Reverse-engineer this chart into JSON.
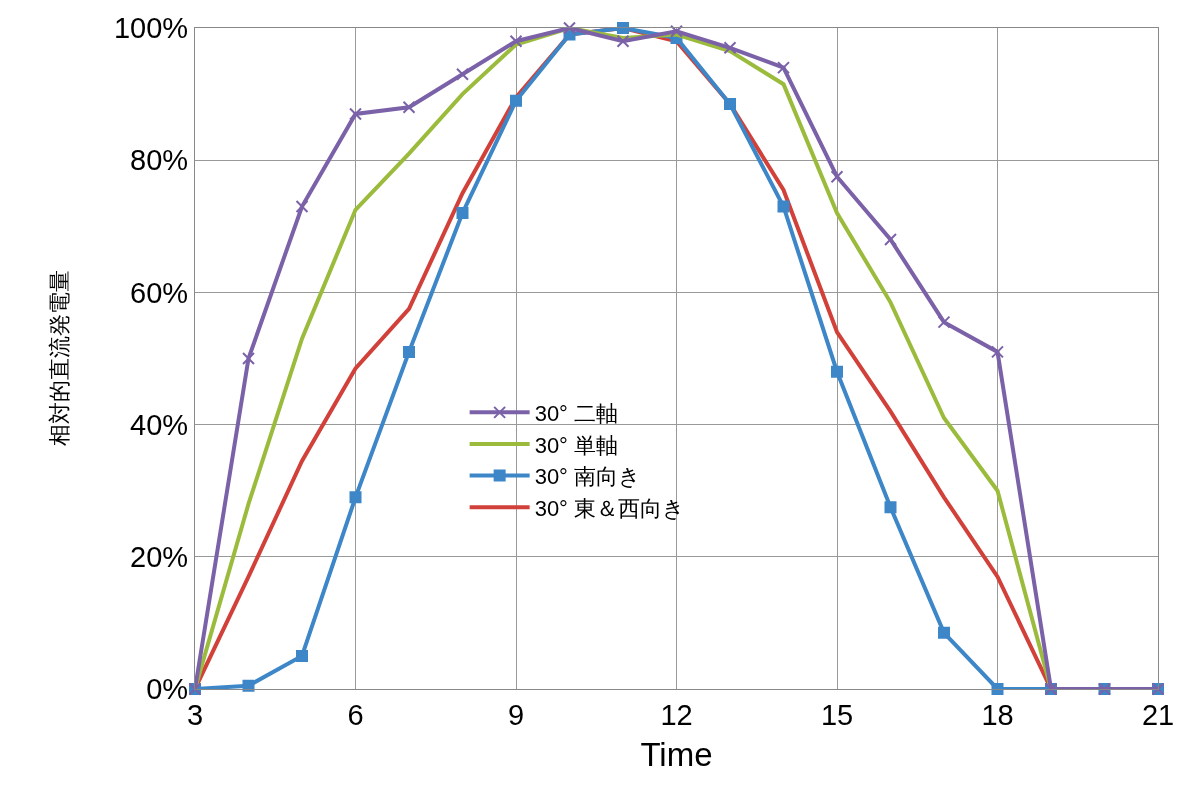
{
  "chart_data": {
    "type": "line",
    "xlabel": "Time",
    "ylabel": "相対的直流発電量",
    "x": [
      3,
      4,
      5,
      6,
      7,
      8,
      9,
      10,
      11,
      12,
      13,
      14,
      15,
      16,
      17,
      18,
      19,
      20,
      21
    ],
    "series": [
      {
        "name": "30° 二軸",
        "color": "#7b62a8",
        "marker": "cross",
        "values": [
          0,
          50,
          73,
          87,
          88,
          93,
          98,
          100,
          98,
          99.5,
          97,
          94,
          77.5,
          68,
          55.5,
          51,
          0,
          0,
          0
        ]
      },
      {
        "name": "30° 単軸",
        "color": "#9bbb3c",
        "marker": "none",
        "values": [
          0,
          28,
          53,
          72.5,
          81,
          90,
          97.5,
          100,
          98.5,
          99,
          96.5,
          91.5,
          72,
          58.5,
          41,
          30,
          0,
          0,
          0
        ]
      },
      {
        "name": "30° 南向き",
        "color": "#3d86c8",
        "marker": "square",
        "values": [
          0,
          0.5,
          5,
          29,
          51,
          72,
          89,
          99,
          100,
          98.5,
          88.5,
          73,
          48,
          27.5,
          8.5,
          0,
          0,
          0,
          0
        ]
      },
      {
        "name": "30° 東＆西向き",
        "color": "#d2403a",
        "marker": "none",
        "values": [
          0,
          17,
          34.5,
          48.5,
          57.5,
          75,
          89.5,
          99,
          100,
          98,
          88.5,
          75.5,
          54,
          42,
          29,
          17,
          0,
          0,
          0
        ]
      }
    ],
    "xlim": [
      3,
      21
    ],
    "xticks": [
      3,
      6,
      9,
      12,
      15,
      18,
      21
    ],
    "ylim": [
      0,
      100
    ],
    "yticks": [
      {
        "value": 0,
        "label": "0%"
      },
      {
        "value": 20,
        "label": "20%"
      },
      {
        "value": 40,
        "label": "40%"
      },
      {
        "value": 60,
        "label": "60%"
      },
      {
        "value": 80,
        "label": "80%"
      },
      {
        "value": 100,
        "label": "100%"
      }
    ],
    "grid": true,
    "legend": "center",
    "line_style": "solid"
  }
}
